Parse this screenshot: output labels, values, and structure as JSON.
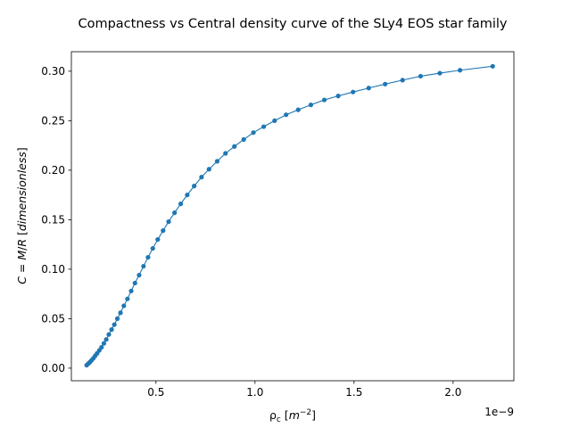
{
  "chart_data": {
    "type": "line",
    "title": "Compactness vs Central density curve of the SLy4 EOS star family",
    "xlabel": "ρc [m−2]",
    "ylabel": "C = M/R [dimensionless]",
    "x_offset_label": "1e−9",
    "x_unit_scale": 1e-09,
    "xlim": [
      0.073,
      2.307
    ],
    "ylim": [
      -0.0127,
      0.3197
    ],
    "xticks": [
      0.5,
      1.0,
      1.5,
      2.0
    ],
    "xtick_labels": [
      "0.5",
      "1.0",
      "1.5",
      "2.0"
    ],
    "yticks": [
      0.0,
      0.05,
      0.1,
      0.15,
      0.2,
      0.25,
      0.3
    ],
    "ytick_labels": [
      "0.00",
      "0.05",
      "0.10",
      "0.15",
      "0.20",
      "0.25",
      "0.30"
    ],
    "grid": false,
    "color": "#1f77b4",
    "series": [
      {
        "x": [
          0.15,
          0.158,
          0.166,
          0.175,
          0.184,
          0.193,
          0.203,
          0.214,
          0.225,
          0.237,
          0.249,
          0.262,
          0.276,
          0.29,
          0.305,
          0.321,
          0.338,
          0.356,
          0.375,
          0.394,
          0.415,
          0.437,
          0.46,
          0.484,
          0.509,
          0.536,
          0.564,
          0.594,
          0.625,
          0.658,
          0.693,
          0.73,
          0.768,
          0.809,
          0.851,
          0.896,
          0.943,
          0.992,
          1.044,
          1.099,
          1.157,
          1.218,
          1.282,
          1.35,
          1.42,
          1.495,
          1.574,
          1.657,
          1.745,
          1.836,
          1.933,
          2.035,
          2.2
        ],
        "values": [
          0.003,
          0.0045,
          0.006,
          0.008,
          0.01,
          0.0125,
          0.015,
          0.018,
          0.021,
          0.025,
          0.029,
          0.034,
          0.039,
          0.044,
          0.05,
          0.056,
          0.063,
          0.07,
          0.078,
          0.086,
          0.094,
          0.103,
          0.112,
          0.121,
          0.13,
          0.139,
          0.148,
          0.157,
          0.166,
          0.175,
          0.184,
          0.193,
          0.201,
          0.209,
          0.217,
          0.224,
          0.231,
          0.238,
          0.244,
          0.25,
          0.256,
          0.261,
          0.266,
          0.271,
          0.275,
          0.279,
          0.283,
          0.287,
          0.291,
          0.295,
          0.298,
          0.301,
          0.305
        ]
      }
    ]
  }
}
